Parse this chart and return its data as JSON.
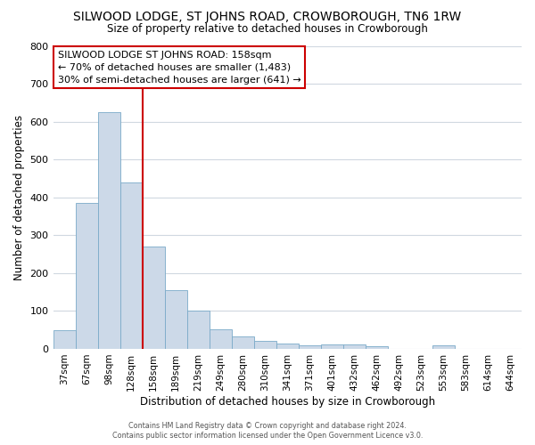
{
  "title": "SILWOOD LODGE, ST JOHNS ROAD, CROWBOROUGH, TN6 1RW",
  "subtitle": "Size of property relative to detached houses in Crowborough",
  "xlabel": "Distribution of detached houses by size in Crowborough",
  "ylabel": "Number of detached properties",
  "bar_color": "#ccd9e8",
  "bar_edge_color": "#7aaac8",
  "categories": [
    "37sqm",
    "67sqm",
    "98sqm",
    "128sqm",
    "158sqm",
    "189sqm",
    "219sqm",
    "249sqm",
    "280sqm",
    "310sqm",
    "341sqm",
    "371sqm",
    "401sqm",
    "432sqm",
    "462sqm",
    "492sqm",
    "523sqm",
    "553sqm",
    "583sqm",
    "614sqm",
    "644sqm"
  ],
  "values": [
    50,
    385,
    625,
    440,
    270,
    155,
    100,
    52,
    32,
    20,
    15,
    10,
    12,
    12,
    7,
    0,
    0,
    10,
    0,
    0,
    0
  ],
  "vline_index": 4,
  "vline_color": "#cc0000",
  "ylim": [
    0,
    800
  ],
  "yticks": [
    0,
    100,
    200,
    300,
    400,
    500,
    600,
    700,
    800
  ],
  "annotation_line1": "SILWOOD LODGE ST JOHNS ROAD: 158sqm",
  "annotation_line2": "← 70% of detached houses are smaller (1,483)",
  "annotation_line3": "30% of semi-detached houses are larger (641) →",
  "annotation_box_color": "#ffffff",
  "annotation_box_edge": "#cc0000",
  "footer1": "Contains HM Land Registry data © Crown copyright and database right 2024.",
  "footer2": "Contains public sector information licensed under the Open Government Licence v3.0.",
  "background_color": "#ffffff",
  "grid_color": "#d0d8e0"
}
